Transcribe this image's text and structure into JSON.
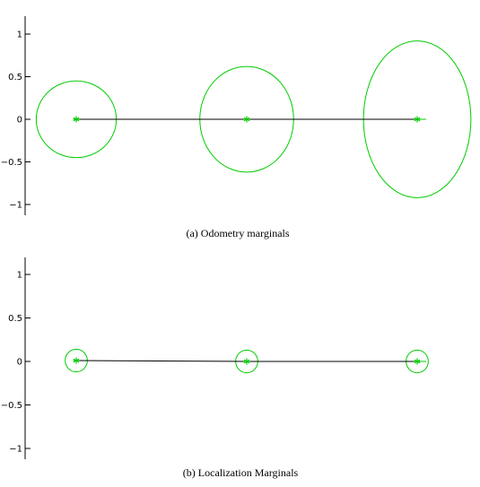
{
  "chart_data": [
    {
      "type": "scatter",
      "caption": "(a) Odometry marginals",
      "ylim": [
        -1.1,
        1.1
      ],
      "yticks": [
        1,
        0.5,
        0,
        -0.5,
        -1
      ],
      "ytick_labels": [
        "1",
        "0.5",
        "0",
        "−0.5",
        "−1"
      ],
      "xlim": [
        -0.6,
        4.6
      ],
      "points": [
        {
          "x": 0,
          "y": 0
        },
        {
          "x": 2,
          "y": 0
        },
        {
          "x": 4,
          "y": 0
        }
      ],
      "ellipses": [
        {
          "cx": 0,
          "cy": 0,
          "rx": 0.47,
          "ry": 0.45
        },
        {
          "cx": 2,
          "cy": 0,
          "rx": 0.55,
          "ry": 0.62
        },
        {
          "cx": 4,
          "cy": 0,
          "rx": 0.63,
          "ry": 0.92
        }
      ],
      "path_color": "#000000",
      "marginal_color": "#00cc00"
    },
    {
      "type": "scatter",
      "caption": "(b) Localization Marginals",
      "ylim": [
        -1.1,
        1.1
      ],
      "yticks": [
        1,
        0.5,
        0,
        -0.5,
        -1
      ],
      "ytick_labels": [
        "1",
        "0.5",
        "0",
        "−0.5",
        "−1"
      ],
      "xlim": [
        -0.6,
        4.6
      ],
      "points": [
        {
          "x": 0,
          "y": 0.01
        },
        {
          "x": 2,
          "y": 0
        },
        {
          "x": 4,
          "y": 0
        }
      ],
      "ellipses": [
        {
          "cx": 0,
          "cy": 0.01,
          "rx": 0.13,
          "ry": 0.13
        },
        {
          "cx": 2,
          "cy": 0,
          "rx": 0.13,
          "ry": 0.13
        },
        {
          "cx": 4,
          "cy": 0,
          "rx": 0.13,
          "ry": 0.13
        }
      ],
      "path_color": "#000000",
      "marginal_color": "#00cc00"
    }
  ]
}
